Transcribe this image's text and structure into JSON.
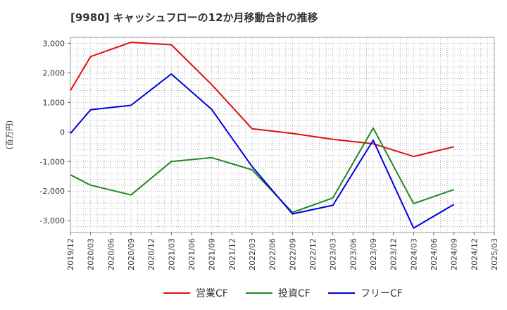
{
  "chart_data": {
    "type": "line",
    "title": "[9980]  キャッシュフローの12か月移動合計の推移",
    "ylabel": "(百万円)",
    "xlabel": "",
    "ylim": [
      -3400,
      3200
    ],
    "yticks": [
      3000,
      2000,
      1000,
      0,
      -1000,
      -2000,
      -3000
    ],
    "ytick_labels": [
      "3,000",
      "2,000",
      "1,000",
      "0",
      "-1,000",
      "-2,000",
      "-3,000"
    ],
    "categories": [
      "2019/12",
      "2020/03",
      "2020/06",
      "2020/09",
      "2020/12",
      "2021/03",
      "2021/06",
      "2021/09",
      "2021/12",
      "2022/03",
      "2022/06",
      "2022/09",
      "2022/12",
      "2023/03",
      "2023/06",
      "2023/09",
      "2023/12",
      "2024/03",
      "2024/06",
      "2024/09",
      "2024/12",
      "2025/03"
    ],
    "grid": true,
    "legend_position": "bottom-center",
    "series": [
      {
        "name": "営業CF",
        "color": "#dd1111",
        "values": [
          1400,
          2550,
          null,
          3030,
          null,
          2950,
          null,
          1600,
          null,
          110,
          null,
          -50,
          null,
          -250,
          null,
          -400,
          null,
          -830,
          null,
          -500,
          null,
          null
        ]
      },
      {
        "name": "投資CF",
        "color": "#228822",
        "values": [
          -1450,
          -1800,
          null,
          -2130,
          null,
          -1000,
          null,
          -870,
          null,
          -1280,
          null,
          -2720,
          null,
          -2230,
          null,
          130,
          null,
          -2420,
          null,
          -1950,
          null,
          null
        ]
      },
      {
        "name": "フリーCF",
        "color": "#0000dd",
        "values": [
          -50,
          750,
          null,
          900,
          null,
          1960,
          null,
          760,
          null,
          -1170,
          null,
          -2770,
          null,
          -2480,
          null,
          -280,
          null,
          -3250,
          null,
          -2450,
          null,
          null
        ]
      }
    ]
  }
}
